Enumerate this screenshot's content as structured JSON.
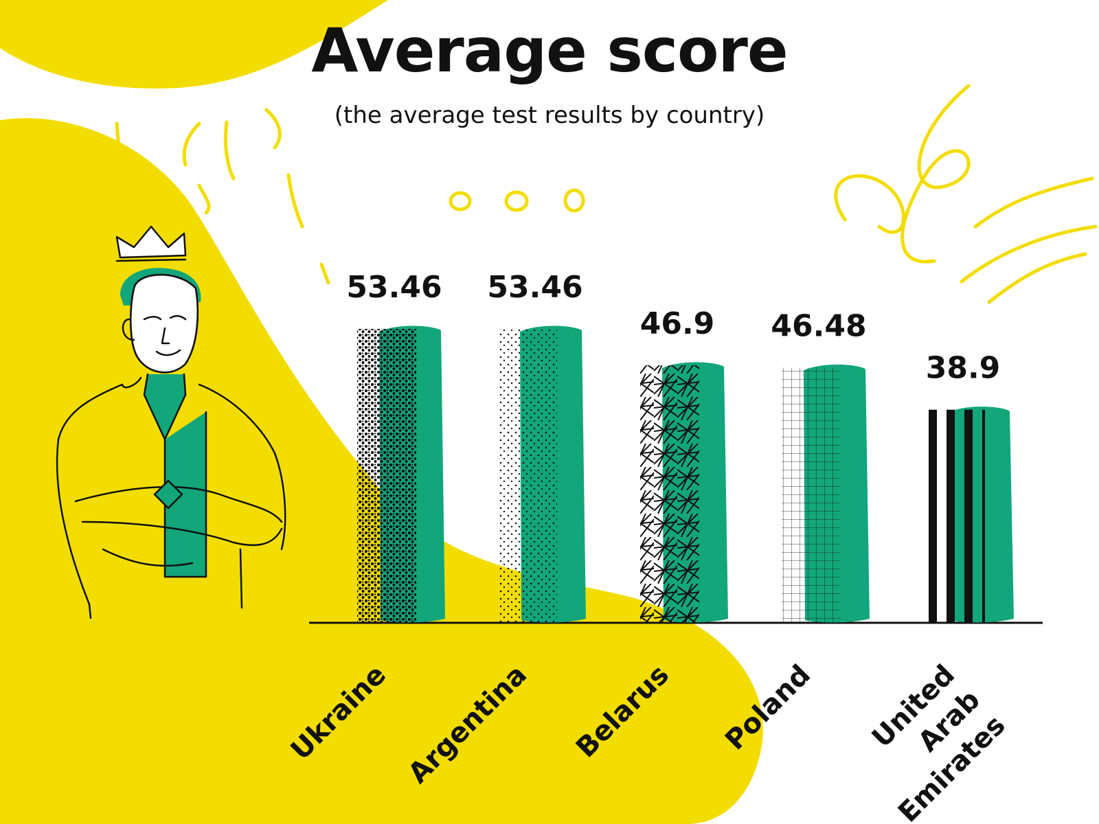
{
  "colors": {
    "yellow": "#f3dd00",
    "green": "#12a67a",
    "ink": "#111111",
    "background": "#ffffff"
  },
  "header": {
    "title": "Average score",
    "subtitle": "(the average test results by country)"
  },
  "illustration": {
    "icon": "man-with-crown-icon"
  },
  "chart_data": {
    "type": "bar",
    "title": "Average score",
    "subtitle": "(the average test results by country)",
    "categories": [
      "Ukraine",
      "Argentina",
      "Belarus",
      "Poland",
      "United Arab Emirates"
    ],
    "category_lines": [
      [
        "Ukraine"
      ],
      [
        "Argentina"
      ],
      [
        "Belarus"
      ],
      [
        "Poland"
      ],
      [
        "United",
        "Arab",
        "Emirates"
      ]
    ],
    "values": [
      53.46,
      53.46,
      46.9,
      46.48,
      38.9
    ],
    "value_labels": [
      "53.46",
      "53.46",
      "46.9",
      "46.48",
      "38.9"
    ],
    "patterns": [
      "dense-dots",
      "sparse-dots",
      "crosshatch",
      "grid",
      "stripes"
    ],
    "xlabel": "",
    "ylabel": "",
    "ylim": [
      0,
      53.46
    ],
    "grid": false,
    "legend": "none"
  }
}
